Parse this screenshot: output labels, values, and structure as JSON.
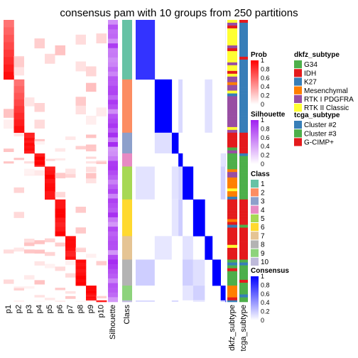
{
  "chart_data": {
    "type": "heatmap",
    "title": "consensus pam with 10 groups from 250 partitions",
    "n_groups": 10,
    "membership_columns": [
      "p1",
      "p2",
      "p3",
      "p4",
      "p5",
      "p6",
      "p7",
      "p8",
      "p9",
      "p10"
    ],
    "annotation_columns": [
      "Silhouette",
      "Class"
    ],
    "right_annotation_columns": [
      "dkfz_subtype",
      "tcga_subtype"
    ],
    "class_groups": [
      {
        "class": "1",
        "row_share": 0.19
      },
      {
        "class": "2",
        "row_share": 0.17
      },
      {
        "class": "3",
        "row_share": 0.066
      },
      {
        "class": "4",
        "row_share": 0.042
      },
      {
        "class": "5",
        "row_share": 0.105
      },
      {
        "class": "6",
        "row_share": 0.117
      },
      {
        "class": "7",
        "row_share": 0.075
      },
      {
        "class": "8",
        "row_share": 0.083
      },
      {
        "class": "9",
        "row_share": 0.047
      },
      {
        "class": "10",
        "row_share": 0.005
      }
    ],
    "legends": {
      "prob": {
        "title": "Prob",
        "ticks": [
          "1",
          "0.8",
          "0.6",
          "0.4",
          "0.2",
          "0"
        ],
        "low_color": "#ffffff",
        "high_color": "#ff0000"
      },
      "silhouette": {
        "title": "Silhouette",
        "ticks": [
          "1",
          "0.8",
          "0.6",
          "0.4",
          "0.2",
          "0"
        ],
        "low_color": "#ffffff",
        "high_color": "#a020f0"
      },
      "class": {
        "title": "Class",
        "entries": [
          {
            "label": "1",
            "color": "#66C2A5"
          },
          {
            "label": "2",
            "color": "#FC8D62"
          },
          {
            "label": "3",
            "color": "#8DA0CB"
          },
          {
            "label": "4",
            "color": "#E78AC3"
          },
          {
            "label": "5",
            "color": "#A6D854"
          },
          {
            "label": "6",
            "color": "#FFD92F"
          },
          {
            "label": "7",
            "color": "#E5C494"
          },
          {
            "label": "8",
            "color": "#B3B3B3"
          },
          {
            "label": "9",
            "color": "#8DD37C"
          },
          {
            "label": "10",
            "color": "#BEBADA"
          }
        ]
      },
      "consensus": {
        "title": "Consensus",
        "ticks": [
          "1",
          "0.8",
          "0.6",
          "0.4",
          "0.2",
          "0"
        ],
        "low_color": "#ffffff",
        "high_color": "#0000ff"
      },
      "dkfz_subtype": {
        "title": "dkfz_subtype",
        "entries": [
          {
            "label": "G34",
            "color": "#4DAF4A"
          },
          {
            "label": "IDH",
            "color": "#E41A1C"
          },
          {
            "label": "K27",
            "color": "#377EB8"
          },
          {
            "label": "Mesenchymal",
            "color": "#FF7F00"
          },
          {
            "label": "RTK I PDGFRA",
            "color": "#984EA3"
          },
          {
            "label": "RTK II Classic",
            "color": "#FFFF33"
          }
        ]
      },
      "tcga_subtype": {
        "title": "tcga_subtype",
        "entries": [
          {
            "label": "Cluster #2",
            "color": "#377EB8"
          },
          {
            "label": "Cluster #3",
            "color": "#4DAF4A"
          },
          {
            "label": "G-CIMP+",
            "color": "#E41A1C"
          }
        ]
      }
    }
  }
}
